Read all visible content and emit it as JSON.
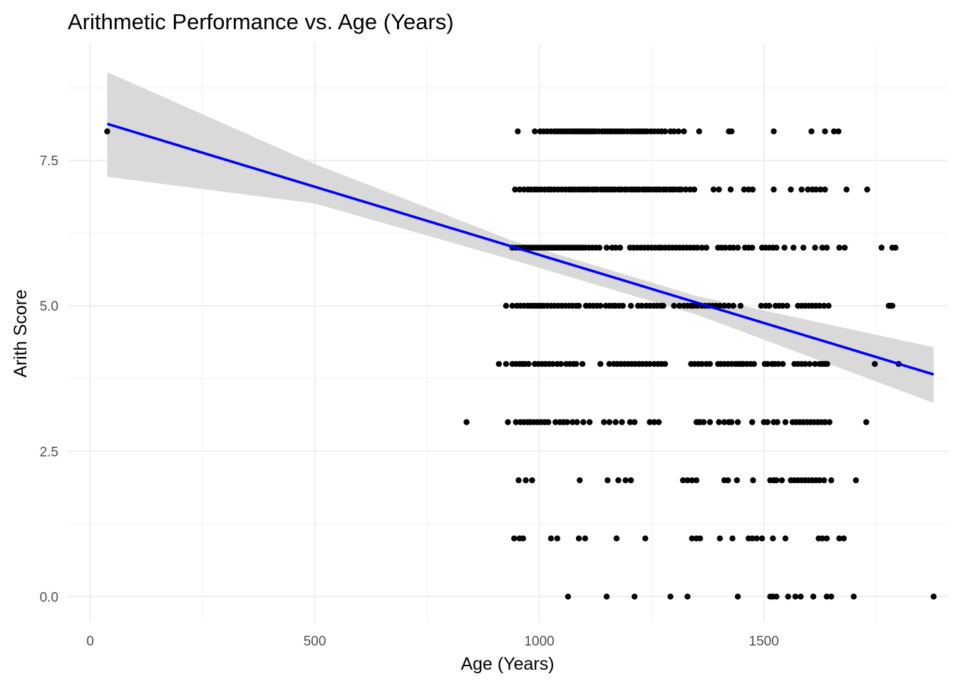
{
  "chart_data": {
    "type": "scatter",
    "title": "Arithmetic Performance vs. Age (Years)",
    "xlabel": "Age (Years)",
    "ylabel": "Arith Score",
    "xlim": [
      -50,
      1910
    ],
    "ylim": [
      -0.45,
      9.5
    ],
    "xticks": [
      {
        "value": 0,
        "label": "0"
      },
      {
        "value": 500,
        "label": "500"
      },
      {
        "value": 1000,
        "label": "1000"
      },
      {
        "value": 1500,
        "label": "1500"
      }
    ],
    "yticks": [
      {
        "value": 0,
        "label": "0.0"
      },
      {
        "value": 2.5,
        "label": "2.5"
      },
      {
        "value": 5,
        "label": "5.0"
      },
      {
        "value": 7.5,
        "label": "7.5"
      }
    ],
    "grid": true,
    "legend": "none",
    "colors": {
      "points": "#000000",
      "fit_line": "#0000ff",
      "confidence_band": "#d9d9d9"
    },
    "points": {
      "groups": [
        {
          "y": 8,
          "x": [
            38,
            952,
            990,
            1002,
            1010,
            1018,
            1026,
            1034,
            1040,
            1046,
            1052,
            1058,
            1064,
            1070,
            1075,
            1080,
            1085,
            1090,
            1095,
            1100,
            1105,
            1110,
            1115,
            1120,
            1125,
            1132,
            1140,
            1146,
            1152,
            1158,
            1164,
            1170,
            1176,
            1182,
            1188,
            1196,
            1204,
            1210,
            1216,
            1222,
            1228,
            1234,
            1240,
            1248,
            1256,
            1264,
            1272,
            1280,
            1292,
            1300,
            1310,
            1322,
            1356,
            1422,
            1428,
            1522,
            1606,
            1636,
            1656,
            1666
          ]
        },
        {
          "y": 7,
          "x": [
            946,
            956,
            966,
            975,
            982,
            990,
            996,
            1004,
            1012,
            1020,
            1026,
            1034,
            1042,
            1050,
            1058,
            1066,
            1072,
            1078,
            1086,
            1092,
            1098,
            1104,
            1110,
            1118,
            1124,
            1130,
            1138,
            1144,
            1150,
            1156,
            1162,
            1168,
            1176,
            1182,
            1190,
            1196,
            1204,
            1210,
            1216,
            1222,
            1230,
            1236,
            1242,
            1248,
            1256,
            1262,
            1268,
            1276,
            1282,
            1290,
            1296,
            1302,
            1310,
            1316,
            1326,
            1336,
            1345,
            1388,
            1400,
            1426,
            1456,
            1466,
            1475,
            1522,
            1560,
            1584,
            1598,
            1608,
            1616,
            1626,
            1636,
            1684,
            1730
          ]
        },
        {
          "y": 6,
          "x": [
            940,
            948,
            956,
            964,
            970,
            976,
            982,
            988,
            994,
            1000,
            1006,
            1012,
            1018,
            1024,
            1030,
            1036,
            1042,
            1048,
            1054,
            1060,
            1066,
            1072,
            1078,
            1084,
            1090,
            1096,
            1102,
            1110,
            1118,
            1126,
            1134,
            1150,
            1162,
            1170,
            1180,
            1202,
            1210,
            1218,
            1226,
            1234,
            1242,
            1250,
            1258,
            1266,
            1272,
            1280,
            1288,
            1296,
            1304,
            1312,
            1320,
            1328,
            1336,
            1344,
            1352,
            1362,
            1372,
            1398,
            1406,
            1414,
            1424,
            1432,
            1442,
            1458,
            1466,
            1474,
            1496,
            1504,
            1512,
            1520,
            1528,
            1546,
            1566,
            1588,
            1614,
            1630,
            1640,
            1668,
            1680,
            1762,
            1786,
            1793
          ]
        },
        {
          "y": 5,
          "x": [
            926,
            940,
            950,
            958,
            966,
            974,
            980,
            986,
            992,
            998,
            1004,
            1010,
            1018,
            1026,
            1034,
            1042,
            1050,
            1058,
            1066,
            1074,
            1082,
            1088,
            1104,
            1112,
            1120,
            1128,
            1136,
            1148,
            1156,
            1164,
            1170,
            1178,
            1186,
            1204,
            1220,
            1228,
            1238,
            1246,
            1254,
            1262,
            1270,
            1276,
            1300,
            1312,
            1322,
            1330,
            1338,
            1344,
            1352,
            1362,
            1370,
            1378,
            1386,
            1394,
            1402,
            1412,
            1422,
            1432,
            1448,
            1494,
            1504,
            1512,
            1526,
            1534,
            1542,
            1552,
            1576,
            1584,
            1592,
            1600,
            1608,
            1616,
            1624,
            1634,
            1644,
            1778,
            1782,
            1786
          ]
        },
        {
          "y": 4,
          "x": [
            910,
            926,
            940,
            948,
            956,
            962,
            968,
            976,
            990,
            998,
            1006,
            1014,
            1022,
            1030,
            1040,
            1048,
            1060,
            1068,
            1076,
            1082,
            1096,
            1136,
            1156,
            1166,
            1174,
            1182,
            1190,
            1198,
            1206,
            1214,
            1222,
            1230,
            1238,
            1246,
            1256,
            1264,
            1272,
            1280,
            1338,
            1346,
            1354,
            1362,
            1372,
            1380,
            1398,
            1404,
            1412,
            1420,
            1428,
            1436,
            1442,
            1448,
            1454,
            1462,
            1470,
            1478,
            1502,
            1508,
            1518,
            1524,
            1532,
            1542,
            1568,
            1576,
            1584,
            1592,
            1602,
            1614,
            1624,
            1630,
            1636,
            1641,
            1747,
            1800
          ]
        },
        {
          "y": 3,
          "x": [
            838,
            930,
            948,
            958,
            966,
            974,
            980,
            988,
            996,
            1004,
            1012,
            1020,
            1036,
            1046,
            1054,
            1062,
            1074,
            1084,
            1098,
            1112,
            1144,
            1156,
            1170,
            1184,
            1202,
            1212,
            1246,
            1256,
            1266,
            1350,
            1354,
            1358,
            1366,
            1380,
            1400,
            1412,
            1422,
            1428,
            1442,
            1474,
            1500,
            1508,
            1522,
            1530,
            1548,
            1564,
            1572,
            1580,
            1588,
            1596,
            1604,
            1612,
            1620,
            1628,
            1636,
            1646,
            1728
          ]
        },
        {
          "y": 2,
          "x": [
            954,
            970,
            984,
            1090,
            1152,
            1176,
            1192,
            1204,
            1320,
            1330,
            1340,
            1350,
            1412,
            1420,
            1440,
            1476,
            1514,
            1522,
            1528,
            1540,
            1560,
            1568,
            1576,
            1584,
            1592,
            1600,
            1608,
            1616,
            1624,
            1634,
            1650,
            1705
          ]
        },
        {
          "y": 1,
          "x": [
            944,
            956,
            964,
            1026,
            1040,
            1088,
            1102,
            1172,
            1236,
            1340,
            1350,
            1358,
            1402,
            1430,
            1466,
            1474,
            1484,
            1496,
            1520,
            1548,
            1622,
            1630,
            1640,
            1668,
            1678
          ]
        },
        {
          "y": 0,
          "x": [
            1064,
            1150,
            1212,
            1292,
            1330,
            1442,
            1514,
            1520,
            1528,
            1554,
            1570,
            1582,
            1610,
            1640,
            1650,
            1700,
            1878
          ]
        }
      ]
    },
    "fit": {
      "x": [
        38,
        1878
      ],
      "y": [
        8.13,
        3.82
      ]
    },
    "confidence_band": {
      "x": [
        38,
        500,
        940,
        1350,
        1878
      ],
      "lower": [
        7.22,
        6.76,
        5.79,
        4.85,
        3.33
      ],
      "upper": [
        9.02,
        7.44,
        6.12,
        5.17,
        4.29
      ]
    }
  }
}
